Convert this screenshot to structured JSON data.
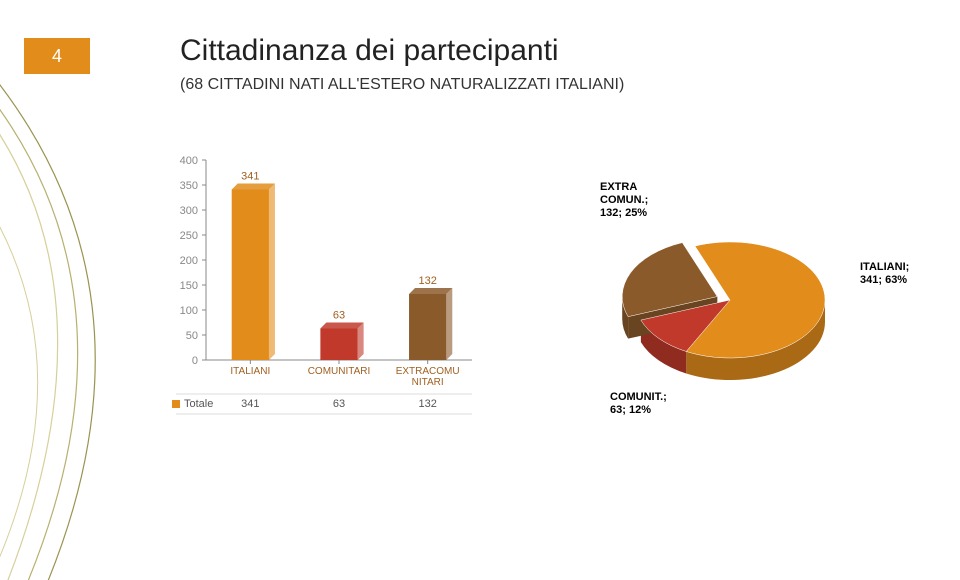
{
  "page_number": "4",
  "title": "Cittadinanza dei partecipanti",
  "subtitle": "(68 CITTADINI NATI ALL'ESTERO NATURALIZZATI ITALIANI)",
  "background_color": "#ffffff",
  "badge_color": "#e28c1b",
  "swoosh_colors": [
    "#d6d09a",
    "#b8b070",
    "#9a9450"
  ],
  "bar_chart": {
    "type": "bar",
    "categories": [
      "ITALIANI",
      "COMUNITARI",
      "EXTRACOMUNITARI"
    ],
    "values": [
      341,
      63,
      132
    ],
    "bar_colors": [
      "#e28c1b",
      "#c0392b",
      "#8b5a2b"
    ],
    "ylim": [
      0,
      400
    ],
    "ytick_step": 50,
    "axis_label_fontsize": 11,
    "category_label_fontsize": 10,
    "value_label_fontsize": 11,
    "axis_color": "#888888",
    "label_color": "#a06020",
    "grid_color": "#888888",
    "legend": {
      "label": "Totale",
      "swatch_color": "#e28c1b"
    },
    "table_row_header": "Totale"
  },
  "pie_chart": {
    "type": "pie-3d",
    "slices": [
      {
        "key": "ITALIANI",
        "value": 341,
        "pct": 63,
        "color": "#e28c1b",
        "label": "ITALIANI; 341; 63%"
      },
      {
        "key": "COMUNIT.",
        "value": 63,
        "pct": 12,
        "color": "#c0392b",
        "label": "COMUNIT.; 63; 12%"
      },
      {
        "key": "EXTRA COMUN.",
        "value": 132,
        "pct": 25,
        "color": "#8b5a2b",
        "label": "EXTRA COMUN.; 132; 25%"
      }
    ],
    "exploded_slice_index": 2,
    "label_fontsize": 11,
    "label_weight": "bold",
    "depth_shade": 0.75
  }
}
